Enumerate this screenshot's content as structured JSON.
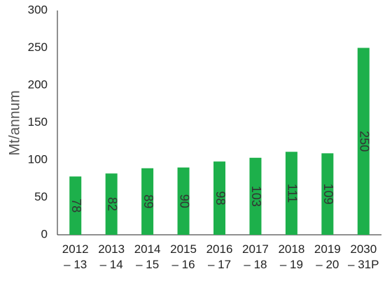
{
  "chart_data": {
    "type": "bar",
    "y_label": "Mt/annum",
    "categories": [
      "2012 – 13",
      "2013 – 14",
      "2014 – 15",
      "2015 – 16",
      "2016 – 17",
      "2017 – 18",
      "2018 – 19",
      "2019 – 20",
      "2030 – 31P"
    ],
    "values": [
      78,
      82,
      89,
      90,
      98,
      103,
      111,
      109,
      250
    ],
    "color": "#1db04b",
    "ylim": [
      0,
      300
    ],
    "yticks": [
      0,
      50,
      100,
      150,
      200,
      250,
      300
    ],
    "grid": false
  }
}
